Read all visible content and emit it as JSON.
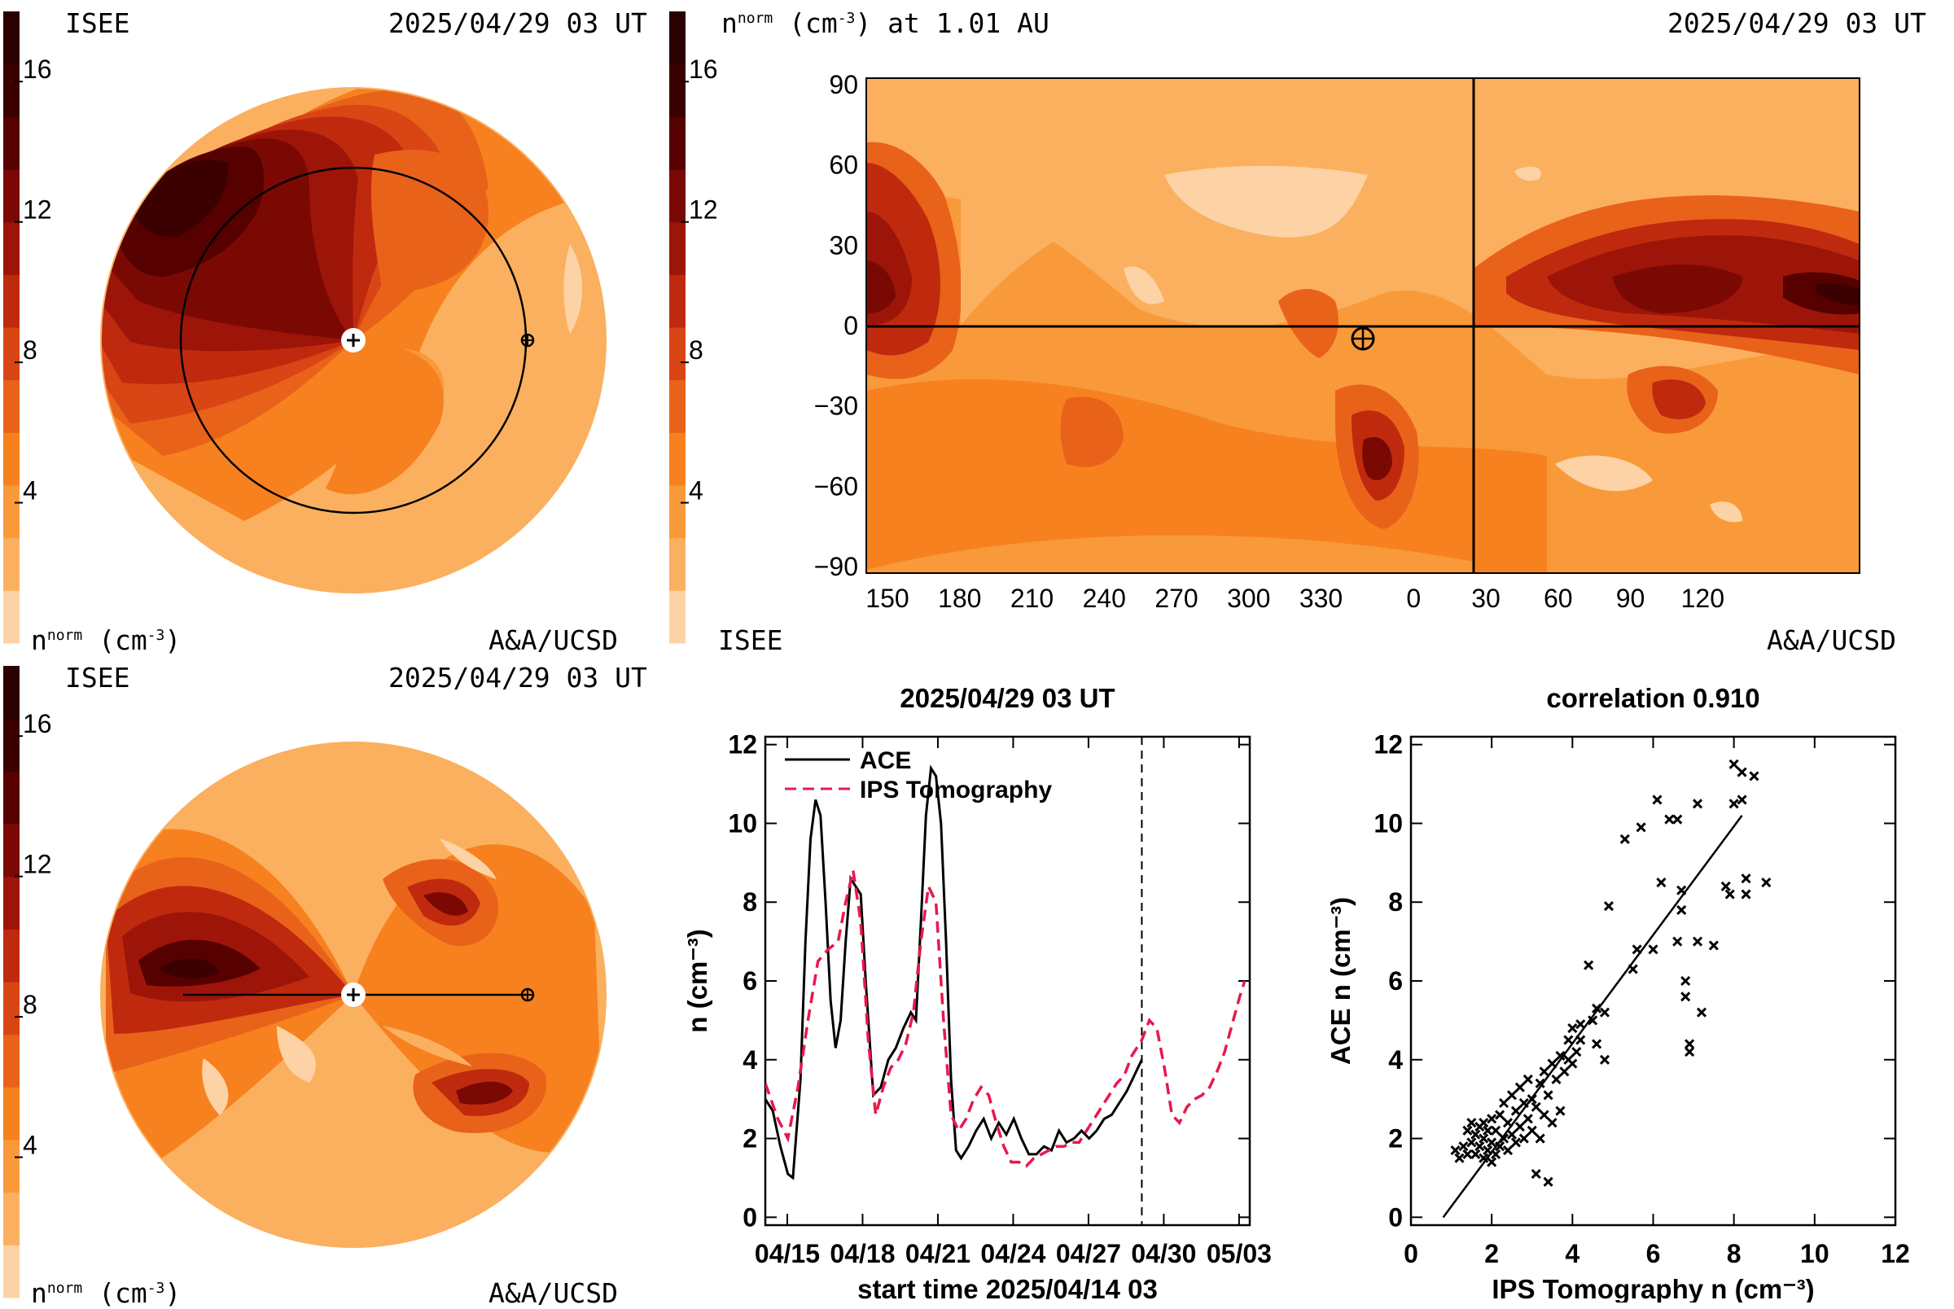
{
  "colorbar": {
    "levels": [
      "#fdd3a5",
      "#fbb05f",
      "#f99a3a",
      "#f7811f",
      "#e9621a",
      "#d94514",
      "#bf2a0e",
      "#9d1508",
      "#7a0904",
      "#560000",
      "#3b0000",
      "#2a0000"
    ],
    "ticks": [
      "4",
      "8",
      "12",
      "16"
    ],
    "tick_values": [
      4,
      8,
      12,
      16
    ],
    "range": [
      0,
      18
    ]
  },
  "panel_top_left": {
    "org": "ISEE",
    "time": "2025/04/29 03 UT",
    "unit_label": "n",
    "unit_sup": "norm",
    "unit_rest": " (cm",
    "unit_exp": "-3",
    "unit_close": ")",
    "credit": "A&A/UCSD"
  },
  "panel_bottom_left": {
    "org": "ISEE",
    "time": "2025/04/29 03 UT",
    "unit_label": "n",
    "unit_sup": "norm",
    "unit_rest": " (cm",
    "unit_exp": "-3",
    "unit_close": ")",
    "credit": "A&A/UCSD"
  },
  "panel_map": {
    "title_var": "n",
    "title_sup": "norm",
    "title_rest": " (cm",
    "title_exp": "-3",
    "title_tail": ") at 1.01 AU",
    "time": "2025/04/29 03 UT",
    "org": "ISEE",
    "credit": "A&A/UCSD",
    "lon_ticks": [
      "150",
      "180",
      "210",
      "240",
      "270",
      "300",
      "330",
      "0",
      "30",
      "60",
      "90",
      "120"
    ],
    "lat_ticks": [
      "90",
      "60",
      "30",
      "0",
      "−30",
      "−60",
      "−90"
    ]
  },
  "chart_data": [
    {
      "type": "line",
      "title": "2025/04/29 03 UT",
      "xlabel": "start time 2025/04/14 03",
      "ylabel": "n (cm⁻³)",
      "x_ticks": [
        "04/15",
        "04/18",
        "04/21",
        "04/24",
        "04/27",
        "04/30",
        "05/03"
      ],
      "x_tick_days": [
        0.875,
        3.875,
        6.875,
        9.875,
        12.875,
        15.875,
        18.875
      ],
      "y_ticks": [
        "0",
        "2",
        "4",
        "6",
        "8",
        "10",
        "12"
      ],
      "xlim": [
        0,
        19.3
      ],
      "ylim": [
        -0.2,
        12.2
      ],
      "current_time_day": 15.0,
      "series": [
        {
          "name": "ACE",
          "style": "solid",
          "color": "#000000",
          "points": [
            [
              0,
              3.0
            ],
            [
              0.3,
              2.7
            ],
            [
              0.6,
              1.8
            ],
            [
              0.9,
              1.1
            ],
            [
              1.1,
              1.0
            ],
            [
              1.4,
              3.5
            ],
            [
              1.6,
              7.0
            ],
            [
              1.8,
              9.6
            ],
            [
              2.0,
              10.6
            ],
            [
              2.2,
              10.2
            ],
            [
              2.4,
              8.0
            ],
            [
              2.6,
              5.5
            ],
            [
              2.8,
              4.3
            ],
            [
              3.0,
              5.0
            ],
            [
              3.2,
              7.0
            ],
            [
              3.4,
              8.6
            ],
            [
              3.6,
              8.4
            ],
            [
              3.8,
              8.2
            ],
            [
              4.0,
              6.0
            ],
            [
              4.3,
              3.1
            ],
            [
              4.6,
              3.3
            ],
            [
              4.9,
              4.0
            ],
            [
              5.2,
              4.3
            ],
            [
              5.5,
              4.8
            ],
            [
              5.8,
              5.2
            ],
            [
              6.0,
              5.0
            ],
            [
              6.2,
              7.5
            ],
            [
              6.4,
              10.2
            ],
            [
              6.6,
              11.4
            ],
            [
              6.8,
              11.2
            ],
            [
              7.0,
              10.0
            ],
            [
              7.2,
              7.0
            ],
            [
              7.4,
              3.5
            ],
            [
              7.6,
              1.7
            ],
            [
              7.8,
              1.5
            ],
            [
              8.1,
              1.8
            ],
            [
              8.4,
              2.2
            ],
            [
              8.7,
              2.5
            ],
            [
              9.0,
              2.0
            ],
            [
              9.3,
              2.4
            ],
            [
              9.6,
              2.1
            ],
            [
              9.9,
              2.5
            ],
            [
              10.2,
              2.0
            ],
            [
              10.5,
              1.6
            ],
            [
              10.8,
              1.6
            ],
            [
              11.1,
              1.8
            ],
            [
              11.4,
              1.7
            ],
            [
              11.7,
              2.2
            ],
            [
              12.0,
              1.9
            ],
            [
              12.3,
              2.0
            ],
            [
              12.6,
              2.2
            ],
            [
              12.9,
              2.0
            ],
            [
              13.2,
              2.2
            ],
            [
              13.5,
              2.5
            ],
            [
              13.8,
              2.6
            ],
            [
              14.1,
              2.9
            ],
            [
              14.4,
              3.2
            ],
            [
              14.7,
              3.6
            ],
            [
              15.0,
              4.0
            ]
          ]
        },
        {
          "name": "IPS Tomography",
          "style": "dashed",
          "color": "#e8184d",
          "points": [
            [
              0,
              3.4
            ],
            [
              0.5,
              2.5
            ],
            [
              0.9,
              2.0
            ],
            [
              1.3,
              3.3
            ],
            [
              1.7,
              5.0
            ],
            [
              2.1,
              6.5
            ],
            [
              2.5,
              6.8
            ],
            [
              2.9,
              7.0
            ],
            [
              3.2,
              8.0
            ],
            [
              3.5,
              8.8
            ],
            [
              3.8,
              7.5
            ],
            [
              4.1,
              4.5
            ],
            [
              4.4,
              2.6
            ],
            [
              4.7,
              3.3
            ],
            [
              5.0,
              3.8
            ],
            [
              5.3,
              4.0
            ],
            [
              5.6,
              4.4
            ],
            [
              5.9,
              5.2
            ],
            [
              6.2,
              7.0
            ],
            [
              6.5,
              8.4
            ],
            [
              6.8,
              8.0
            ],
            [
              7.1,
              5.0
            ],
            [
              7.4,
              2.6
            ],
            [
              7.7,
              2.2
            ],
            [
              8.0,
              2.5
            ],
            [
              8.3,
              3.0
            ],
            [
              8.6,
              3.3
            ],
            [
              8.9,
              3.1
            ],
            [
              9.2,
              2.4
            ],
            [
              9.5,
              1.8
            ],
            [
              9.8,
              1.4
            ],
            [
              10.1,
              1.4
            ],
            [
              10.4,
              1.3
            ],
            [
              10.7,
              1.5
            ],
            [
              11.0,
              1.6
            ],
            [
              11.3,
              1.7
            ],
            [
              11.6,
              1.8
            ],
            [
              11.9,
              1.8
            ],
            [
              12.2,
              1.9
            ],
            [
              12.5,
              1.9
            ],
            [
              12.8,
              2.2
            ],
            [
              13.1,
              2.5
            ],
            [
              13.4,
              2.8
            ],
            [
              13.7,
              3.1
            ],
            [
              14.0,
              3.4
            ],
            [
              14.3,
              3.6
            ],
            [
              14.6,
              4.1
            ],
            [
              15.0,
              4.5
            ],
            [
              15.3,
              5.0
            ],
            [
              15.6,
              4.8
            ],
            [
              15.9,
              3.8
            ],
            [
              16.2,
              2.6
            ],
            [
              16.5,
              2.4
            ],
            [
              16.8,
              2.8
            ],
            [
              17.1,
              3.0
            ],
            [
              17.4,
              3.1
            ],
            [
              17.7,
              3.3
            ],
            [
              18.0,
              3.7
            ],
            [
              18.3,
              4.2
            ],
            [
              18.6,
              4.9
            ],
            [
              18.9,
              5.6
            ],
            [
              19.1,
              6.0
            ]
          ]
        }
      ]
    },
    {
      "type": "scatter",
      "title": "correlation 0.910",
      "xlabel": "IPS Tomography n (cm⁻³)",
      "ylabel": "ACE n (cm⁻³)",
      "x_ticks": [
        "0",
        "2",
        "4",
        "6",
        "8",
        "10",
        "12"
      ],
      "y_ticks": [
        "0",
        "2",
        "4",
        "6",
        "8",
        "10",
        "12"
      ],
      "xlim": [
        0,
        12
      ],
      "ylim": [
        -0.2,
        12.2
      ],
      "fit_line": [
        [
          0.8,
          0.0
        ],
        [
          8.2,
          10.2
        ]
      ],
      "points": [
        [
          1.1,
          1.7
        ],
        [
          1.2,
          1.5
        ],
        [
          1.3,
          1.8
        ],
        [
          1.4,
          1.6
        ],
        [
          1.4,
          2.2
        ],
        [
          1.5,
          2.4
        ],
        [
          1.5,
          1.9
        ],
        [
          1.6,
          1.6
        ],
        [
          1.6,
          2.1
        ],
        [
          1.7,
          1.8
        ],
        [
          1.7,
          2.3
        ],
        [
          1.8,
          1.5
        ],
        [
          1.8,
          2.0
        ],
        [
          1.8,
          2.4
        ],
        [
          1.9,
          1.7
        ],
        [
          1.9,
          2.2
        ],
        [
          2.0,
          1.4
        ],
        [
          2.0,
          1.9
        ],
        [
          2.0,
          2.5
        ],
        [
          2.1,
          1.6
        ],
        [
          2.1,
          2.2
        ],
        [
          2.2,
          1.8
        ],
        [
          2.2,
          2.6
        ],
        [
          2.3,
          2.0
        ],
        [
          2.3,
          2.9
        ],
        [
          2.4,
          1.7
        ],
        [
          2.4,
          2.4
        ],
        [
          2.5,
          2.1
        ],
        [
          2.5,
          3.1
        ],
        [
          2.6,
          1.9
        ],
        [
          2.6,
          2.7
        ],
        [
          2.7,
          2.3
        ],
        [
          2.7,
          3.3
        ],
        [
          2.8,
          2.0
        ],
        [
          2.8,
          2.9
        ],
        [
          2.9,
          2.5
        ],
        [
          2.9,
          3.5
        ],
        [
          3.0,
          2.2
        ],
        [
          3.0,
          3.0
        ],
        [
          3.1,
          1.1
        ],
        [
          3.1,
          2.8
        ],
        [
          3.2,
          3.4
        ],
        [
          3.2,
          2.0
        ],
        [
          3.3,
          2.6
        ],
        [
          3.3,
          3.7
        ],
        [
          3.4,
          3.1
        ],
        [
          3.4,
          0.9
        ],
        [
          3.5,
          2.4
        ],
        [
          3.5,
          3.9
        ],
        [
          3.6,
          3.5
        ],
        [
          3.7,
          2.7
        ],
        [
          3.7,
          4.1
        ],
        [
          3.8,
          3.7
        ],
        [
          3.9,
          4.5
        ],
        [
          3.9,
          4.0
        ],
        [
          4.0,
          3.9
        ],
        [
          4.0,
          4.8
        ],
        [
          4.1,
          4.2
        ],
        [
          4.2,
          4.9
        ],
        [
          4.2,
          4.5
        ],
        [
          4.4,
          6.4
        ],
        [
          4.5,
          5.0
        ],
        [
          4.6,
          4.4
        ],
        [
          4.6,
          5.3
        ],
        [
          4.8,
          4.0
        ],
        [
          4.8,
          5.2
        ],
        [
          4.9,
          7.9
        ],
        [
          5.3,
          9.6
        ],
        [
          5.5,
          6.3
        ],
        [
          5.6,
          6.8
        ],
        [
          5.7,
          9.9
        ],
        [
          6.0,
          6.8
        ],
        [
          6.1,
          10.6
        ],
        [
          6.2,
          8.5
        ],
        [
          6.4,
          10.1
        ],
        [
          6.6,
          10.1
        ],
        [
          6.6,
          7.0
        ],
        [
          6.7,
          7.8
        ],
        [
          6.7,
          8.3
        ],
        [
          6.8,
          6.0
        ],
        [
          6.8,
          5.6
        ],
        [
          6.9,
          4.4
        ],
        [
          6.9,
          4.2
        ],
        [
          7.1,
          10.5
        ],
        [
          7.1,
          7.0
        ],
        [
          7.2,
          5.2
        ],
        [
          7.5,
          6.9
        ],
        [
          7.8,
          8.4
        ],
        [
          7.9,
          8.2
        ],
        [
          8.0,
          11.5
        ],
        [
          8.0,
          10.5
        ],
        [
          8.2,
          11.3
        ],
        [
          8.2,
          10.6
        ],
        [
          8.3,
          8.2
        ],
        [
          8.3,
          8.6
        ],
        [
          8.5,
          11.2
        ],
        [
          8.8,
          8.5
        ]
      ]
    }
  ]
}
